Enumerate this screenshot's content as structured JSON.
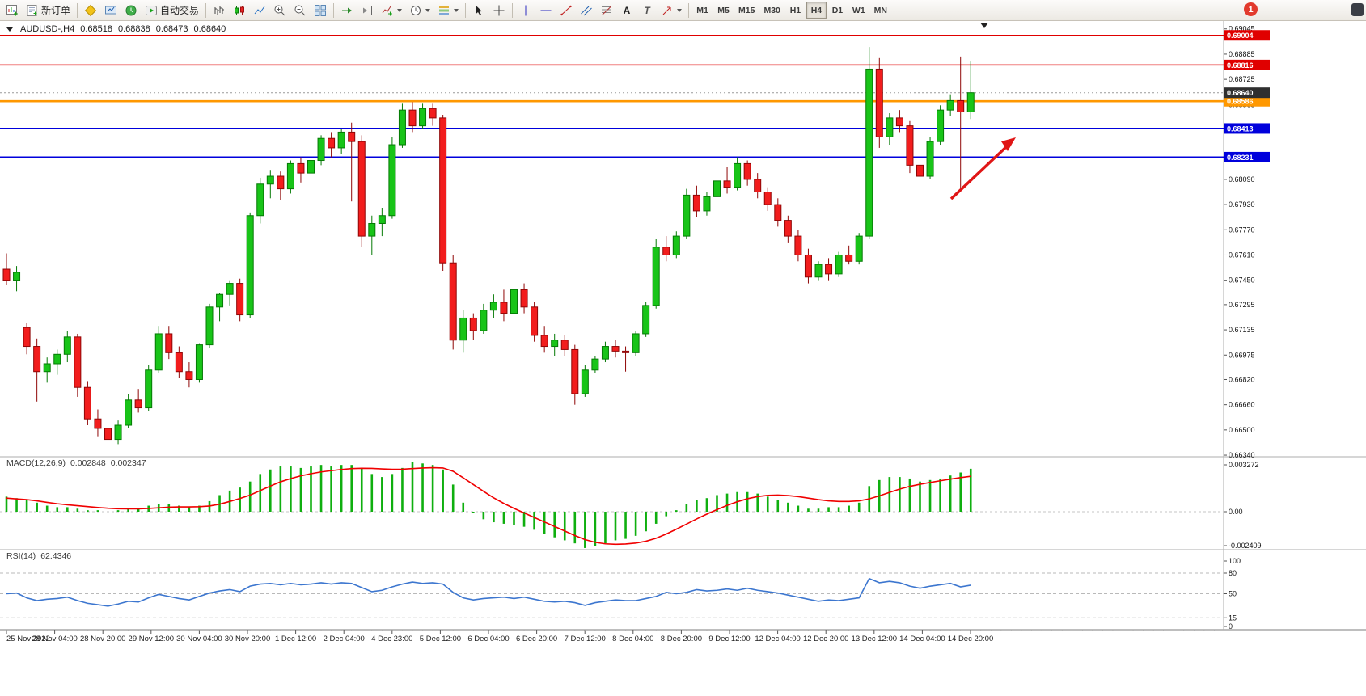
{
  "toolbar": {
    "new_order_label": "新订单",
    "autotrading_label": "自动交易",
    "timeframes": [
      "M1",
      "M5",
      "M15",
      "M30",
      "H1",
      "H4",
      "D1",
      "W1",
      "MN"
    ],
    "active_timeframe": "H4",
    "notification_count": "1",
    "icon_glyphs": {
      "text_tool": "A",
      "text_label_tool": "T"
    }
  },
  "chart": {
    "title": {
      "symbol_period": "AUDUSD-,H4",
      "open": "0.68518",
      "high": "0.68838",
      "low": "0.68473",
      "close": "0.68640"
    },
    "price_axis": {
      "labels": [
        "0.69045",
        "0.68885",
        "0.68725",
        "0.68565",
        "0.68405",
        "0.68245",
        "0.68090",
        "0.67930",
        "0.67770",
        "0.67610",
        "0.67450",
        "0.67295",
        "0.67135",
        "0.66975",
        "0.66820",
        "0.66660",
        "0.66500",
        "0.66340"
      ]
    },
    "current_price": {
      "value": "0.68640",
      "badge_color": "#2f2f2f"
    },
    "hlines": [
      {
        "value": "0.69004",
        "color": "#e00000",
        "width": 1.6
      },
      {
        "value": "0.68816",
        "color": "#e00000",
        "width": 1.6
      },
      {
        "value": "0.68586",
        "color": "#ff9800",
        "width": 2.6
      },
      {
        "value": "0.68413",
        "color": "#0000dc",
        "width": 1.8
      },
      {
        "value": "0.68231",
        "color": "#0000dc",
        "width": 1.8
      }
    ],
    "arrow_color": "#e01616"
  },
  "macd": {
    "label": "MACD(12,26,9)",
    "main_value": "0.002848",
    "signal_value": "0.002347",
    "axis_labels": [
      "0.003272",
      "0.00",
      "-0.002409"
    ]
  },
  "rsi": {
    "label": "RSI(14)",
    "value": "62.4346",
    "axis_labels": [
      "100",
      "80",
      "50",
      "15",
      "0"
    ],
    "levels": [
      80,
      50,
      15
    ]
  },
  "time_axis": {
    "labels": [
      "25 Nov 2022",
      "28 Nov 04:00",
      "28 Nov 20:00",
      "29 Nov 12:00",
      "30 Nov 04:00",
      "30 Nov 20:00",
      "1 Dec 12:00",
      "2 Dec 04:00",
      "4 Dec 23:00",
      "5 Dec 12:00",
      "6 Dec 04:00",
      "6 Dec 20:00",
      "7 Dec 12:00",
      "8 Dec 04:00",
      "8 Dec 20:00",
      "9 Dec 12:00",
      "12 Dec 04:00",
      "12 Dec 20:00",
      "13 Dec 12:00",
      "14 Dec 04:00",
      "14 Dec 20:00"
    ]
  },
  "chart_data": {
    "type": "candlestick",
    "symbol": "AUDUSD-",
    "timeframe": "H4",
    "last_ohlc": {
      "open": 0.68518,
      "high": 0.68838,
      "low": 0.68473,
      "close": 0.6864
    },
    "price_range": {
      "top": 0.69095,
      "bottom": 0.6633
    },
    "candles": [
      [
        0.6752,
        0.6762,
        0.6742,
        0.6745
      ],
      [
        0.6745,
        0.6754,
        0.6738,
        0.675
      ],
      [
        0.6715,
        0.6718,
        0.6698,
        0.6703
      ],
      [
        0.6703,
        0.6708,
        0.6668,
        0.6687
      ],
      [
        0.6687,
        0.6696,
        0.668,
        0.6692
      ],
      [
        0.6692,
        0.6701,
        0.6685,
        0.6698
      ],
      [
        0.6698,
        0.6713,
        0.6693,
        0.6709
      ],
      [
        0.6709,
        0.6711,
        0.6671,
        0.6677
      ],
      [
        0.6677,
        0.6681,
        0.6653,
        0.6657
      ],
      [
        0.6657,
        0.6663,
        0.6646,
        0.6651
      ],
      [
        0.6651,
        0.6659,
        0.66365,
        0.6644
      ],
      [
        0.6644,
        0.6656,
        0.6641,
        0.6653
      ],
      [
        0.6653,
        0.6673,
        0.6651,
        0.6669
      ],
      [
        0.6669,
        0.6676,
        0.6661,
        0.6664
      ],
      [
        0.6664,
        0.6691,
        0.6662,
        0.6688
      ],
      [
        0.6688,
        0.6716,
        0.6686,
        0.6711
      ],
      [
        0.6711,
        0.6716,
        0.6695,
        0.6699
      ],
      [
        0.6699,
        0.6703,
        0.6683,
        0.6687
      ],
      [
        0.6687,
        0.6693,
        0.6677,
        0.6682
      ],
      [
        0.6682,
        0.6705,
        0.668,
        0.6704
      ],
      [
        0.6704,
        0.673,
        0.6702,
        0.6728
      ],
      [
        0.6728,
        0.6737,
        0.6719,
        0.6736
      ],
      [
        0.6736,
        0.6745,
        0.6729,
        0.6743
      ],
      [
        0.6743,
        0.6746,
        0.6719,
        0.6723
      ],
      [
        0.6723,
        0.6788,
        0.6721,
        0.6786
      ],
      [
        0.6786,
        0.681,
        0.6781,
        0.6806
      ],
      [
        0.6806,
        0.6815,
        0.6797,
        0.6811
      ],
      [
        0.6811,
        0.6814,
        0.6796,
        0.6803
      ],
      [
        0.6803,
        0.6821,
        0.68,
        0.6819
      ],
      [
        0.6819,
        0.6823,
        0.6807,
        0.6813
      ],
      [
        0.6813,
        0.6826,
        0.6809,
        0.6821
      ],
      [
        0.6821,
        0.6837,
        0.6818,
        0.6835
      ],
      [
        0.6835,
        0.6839,
        0.6823,
        0.6829
      ],
      [
        0.6829,
        0.6841,
        0.6825,
        0.6839
      ],
      [
        0.6839,
        0.6845,
        0.6795,
        0.6833
      ],
      [
        0.6833,
        0.6837,
        0.6766,
        0.6773
      ],
      [
        0.6773,
        0.6786,
        0.6761,
        0.6781
      ],
      [
        0.6781,
        0.6791,
        0.6773,
        0.6786
      ],
      [
        0.6786,
        0.6836,
        0.6784,
        0.6831
      ],
      [
        0.6831,
        0.6857,
        0.6829,
        0.6853
      ],
      [
        0.6853,
        0.6858,
        0.6839,
        0.6843
      ],
      [
        0.6843,
        0.6857,
        0.6841,
        0.6854
      ],
      [
        0.6854,
        0.6857,
        0.6843,
        0.6848
      ],
      [
        0.6848,
        0.685,
        0.6751,
        0.6756
      ],
      [
        0.6756,
        0.6761,
        0.6701,
        0.6707
      ],
      [
        0.6707,
        0.6726,
        0.6699,
        0.6721
      ],
      [
        0.6721,
        0.6724,
        0.6707,
        0.6713
      ],
      [
        0.6713,
        0.673,
        0.6711,
        0.6726
      ],
      [
        0.6726,
        0.6736,
        0.6721,
        0.6731
      ],
      [
        0.6731,
        0.6739,
        0.6719,
        0.6724
      ],
      [
        0.6724,
        0.6741,
        0.6721,
        0.6739
      ],
      [
        0.6739,
        0.6743,
        0.6724,
        0.6728
      ],
      [
        0.6728,
        0.6731,
        0.6706,
        0.671
      ],
      [
        0.671,
        0.6716,
        0.6699,
        0.6703
      ],
      [
        0.6703,
        0.6711,
        0.6697,
        0.6707
      ],
      [
        0.6707,
        0.671,
        0.6697,
        0.6701
      ],
      [
        0.6701,
        0.6704,
        0.6666,
        0.6673
      ],
      [
        0.6673,
        0.6691,
        0.6671,
        0.6688
      ],
      [
        0.6688,
        0.6697,
        0.6686,
        0.6695
      ],
      [
        0.6695,
        0.6706,
        0.6693,
        0.6703
      ],
      [
        0.6703,
        0.6707,
        0.6696,
        0.67
      ],
      [
        0.67,
        0.6703,
        0.6687,
        0.6699
      ],
      [
        0.6699,
        0.6713,
        0.6697,
        0.6711
      ],
      [
        0.6711,
        0.6731,
        0.6709,
        0.6729
      ],
      [
        0.6729,
        0.6771,
        0.6727,
        0.6766
      ],
      [
        0.6766,
        0.6773,
        0.6757,
        0.6761
      ],
      [
        0.6761,
        0.6776,
        0.6759,
        0.6773
      ],
      [
        0.6773,
        0.6803,
        0.6771,
        0.6799
      ],
      [
        0.6799,
        0.6805,
        0.6785,
        0.6789
      ],
      [
        0.6789,
        0.6801,
        0.6786,
        0.6798
      ],
      [
        0.6798,
        0.6811,
        0.6795,
        0.6808
      ],
      [
        0.6808,
        0.6817,
        0.68,
        0.6804
      ],
      [
        0.6804,
        0.6823,
        0.6802,
        0.6819
      ],
      [
        0.6819,
        0.6821,
        0.6805,
        0.6809
      ],
      [
        0.6809,
        0.6813,
        0.6797,
        0.6801
      ],
      [
        0.6801,
        0.6804,
        0.6789,
        0.6793
      ],
      [
        0.6793,
        0.6797,
        0.6779,
        0.6783
      ],
      [
        0.6783,
        0.6786,
        0.6769,
        0.6773
      ],
      [
        0.6773,
        0.6777,
        0.6757,
        0.6761
      ],
      [
        0.6761,
        0.6765,
        0.6743,
        0.6747
      ],
      [
        0.6747,
        0.6757,
        0.6745,
        0.6755
      ],
      [
        0.6755,
        0.6759,
        0.6745,
        0.6749
      ],
      [
        0.6749,
        0.6763,
        0.6747,
        0.6761
      ],
      [
        0.6761,
        0.6767,
        0.6755,
        0.6757
      ],
      [
        0.6757,
        0.6775,
        0.6755,
        0.6773
      ],
      [
        0.6773,
        0.6893,
        0.6771,
        0.6879
      ],
      [
        0.6879,
        0.6886,
        0.6829,
        0.6836
      ],
      [
        0.6836,
        0.6851,
        0.6831,
        0.6848
      ],
      [
        0.6848,
        0.6853,
        0.6839,
        0.6843
      ],
      [
        0.6843,
        0.6846,
        0.6813,
        0.6818
      ],
      [
        0.6818,
        0.6826,
        0.6806,
        0.6811
      ],
      [
        0.6811,
        0.6836,
        0.6809,
        0.6833
      ],
      [
        0.6833,
        0.6856,
        0.6831,
        0.6853
      ],
      [
        0.6853,
        0.6863,
        0.6849,
        0.6859
      ],
      [
        0.6859,
        0.6887,
        0.6802,
        0.68518
      ],
      [
        0.68518,
        0.68838,
        0.68473,
        0.6864
      ]
    ],
    "indicators": {
      "macd": {
        "histogram": [
          0.001,
          0.0009,
          0.0008,
          0.0006,
          0.0004,
          0.0003,
          0.0003,
          0.0002,
          0.0001,
          0.0001,
          0.0,
          0.0001,
          0.0002,
          0.0002,
          0.0004,
          0.0005,
          0.0005,
          0.0004,
          0.0003,
          0.0004,
          0.0007,
          0.0011,
          0.0014,
          0.0016,
          0.002,
          0.0025,
          0.0028,
          0.003,
          0.003,
          0.0029,
          0.003,
          0.0031,
          0.003,
          0.0031,
          0.0031,
          0.0029,
          0.0025,
          0.0023,
          0.0025,
          0.0029,
          0.003272,
          0.0032,
          0.0031,
          0.0028,
          0.0018,
          0.0006,
          -0.0001,
          -0.0005,
          -0.0007,
          -0.0008,
          -0.0009,
          -0.001,
          -0.0012,
          -0.0015,
          -0.0017,
          -0.0019,
          -0.0021,
          -0.002409,
          -0.0023,
          -0.0021,
          -0.0019,
          -0.0018,
          -0.0016,
          -0.0013,
          -0.0008,
          -0.0003,
          0.0001,
          0.0005,
          0.0008,
          0.0009,
          0.0011,
          0.0012,
          0.0013,
          0.0013,
          0.0012,
          0.001,
          0.0008,
          0.0006,
          0.0004,
          0.0002,
          0.0002,
          0.0003,
          0.0003,
          0.0004,
          0.0006,
          0.0017,
          0.0021,
          0.0023,
          0.0023,
          0.0022,
          0.002,
          0.0021,
          0.0022,
          0.0024,
          0.0026,
          0.002848
        ],
        "signal": [
          0.0009,
          0.00085,
          0.0008,
          0.00072,
          0.00062,
          0.00053,
          0.00046,
          0.0004,
          0.00034,
          0.00028,
          0.00023,
          0.0002,
          0.00019,
          0.00019,
          0.00022,
          0.00026,
          0.0003,
          0.00032,
          0.00032,
          0.00033,
          0.00038,
          0.0005,
          0.00068,
          0.00088,
          0.0011,
          0.0014,
          0.0017,
          0.00198,
          0.0022,
          0.00238,
          0.00252,
          0.00264,
          0.00272,
          0.0028,
          0.00286,
          0.00288,
          0.00287,
          0.00284,
          0.00281,
          0.00282,
          0.00286,
          0.0029,
          0.00292,
          0.0029,
          0.00268,
          0.00225,
          0.0018,
          0.00135,
          0.00092,
          0.00055,
          0.00022,
          -8e-05,
          -0.00038,
          -0.00068,
          -0.00098,
          -0.00128,
          -0.00158,
          -0.00185,
          -0.00203,
          -0.00213,
          -0.00216,
          -0.00214,
          -0.00208,
          -0.00196,
          -0.00176,
          -0.00148,
          -0.00116,
          -0.00082,
          -0.00048,
          -0.00016,
          0.00014,
          0.00042,
          0.00066,
          0.00086,
          0.001,
          0.00108,
          0.0011,
          0.00107,
          0.001,
          0.0009,
          0.0008,
          0.00072,
          0.00068,
          0.00068,
          0.00072,
          0.00085,
          0.00105,
          0.00128,
          0.0015,
          0.00168,
          0.00182,
          0.00194,
          0.00205,
          0.00216,
          0.00226,
          0.002347
        ]
      },
      "rsi": {
        "values": [
          50,
          51,
          44,
          40,
          42,
          43,
          45,
          40,
          36,
          34,
          32,
          35,
          39,
          38,
          44,
          49,
          46,
          43,
          41,
          46,
          51,
          54,
          56,
          53,
          61,
          64,
          65,
          63,
          65,
          63,
          64,
          66,
          64,
          66,
          65,
          59,
          53,
          55,
          60,
          64,
          67,
          65,
          66,
          64,
          52,
          44,
          41,
          43,
          44,
          45,
          43,
          45,
          42,
          39,
          38,
          39,
          37,
          33,
          37,
          39,
          41,
          40,
          40,
          43,
          46,
          52,
          50,
          52,
          56,
          54,
          55,
          57,
          55,
          58,
          55,
          53,
          51,
          48,
          45,
          42,
          39,
          41,
          40,
          42,
          44,
          72,
          66,
          68,
          66,
          61,
          58,
          61,
          63,
          65,
          60,
          62.4346
        ]
      }
    }
  }
}
